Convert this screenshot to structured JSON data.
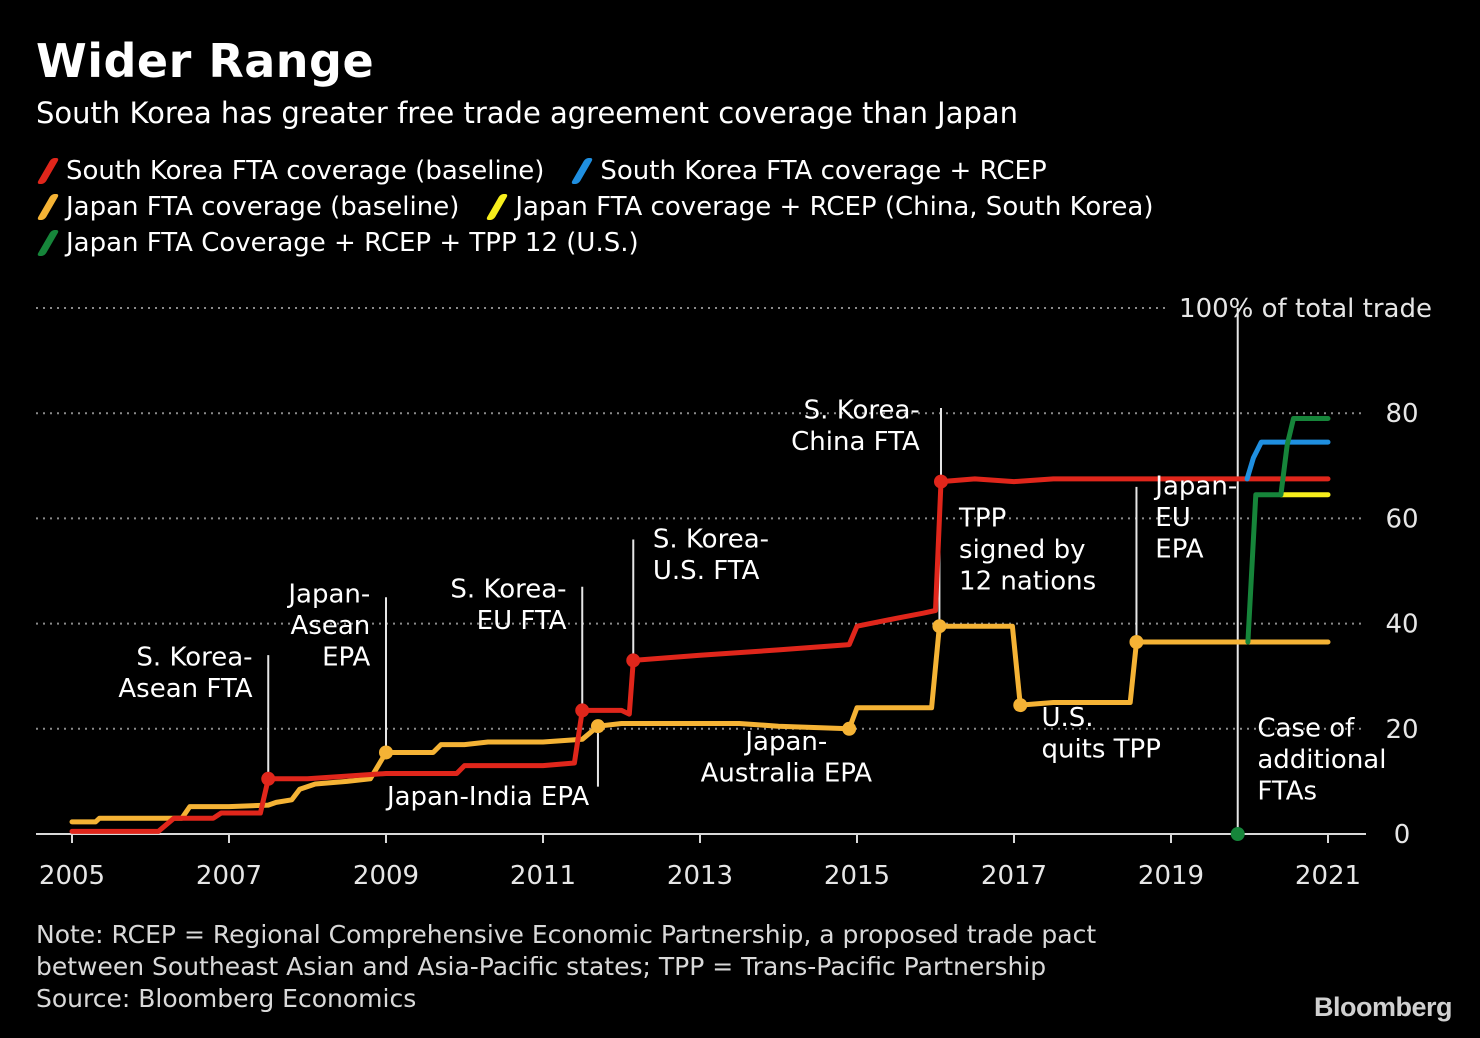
{
  "header": {
    "title": "Wider Range",
    "subtitle": "South Korea has greater free trade agreement coverage than Japan"
  },
  "legend": [
    {
      "label": "South Korea FTA coverage (baseline)",
      "color": "#e0261b"
    },
    {
      "label": "South Korea FTA coverage + RCEP",
      "color": "#1f8fe0"
    },
    {
      "label": "Japan FTA coverage (baseline)",
      "color": "#f5b335"
    },
    {
      "label": "Japan FTA coverage + RCEP (China, South Korea)",
      "color": "#f7ee1c"
    },
    {
      "label": "Japan FTA Coverage + RCEP + TPP 12 (U.S.)",
      "color": "#16853a"
    }
  ],
  "footer": {
    "note_line1": "Note: RCEP = Regional Comprehensive Economic Partnership, a proposed trade pact",
    "note_line2": "between Southeast Asian and Asia-Pacific states; TPP = Trans-Pacific Partnership",
    "source": "Source: Bloomberg Economics",
    "logo": "Bloomberg"
  },
  "chart_data": {
    "type": "line",
    "xlim": [
      2004.6,
      2021.5
    ],
    "ylim": [
      0,
      100
    ],
    "x_ticks": [
      2005,
      2007,
      2009,
      2011,
      2013,
      2015,
      2017,
      2019,
      2021
    ],
    "y_ticks": [
      0,
      20,
      40,
      60,
      80
    ],
    "top_gridline_label": "100% of total trade",
    "grid": true,
    "series": [
      {
        "name": "South Korea FTA coverage (baseline)",
        "color": "#e0261b",
        "points": [
          [
            2005.0,
            0.5
          ],
          [
            2006.1,
            0.5
          ],
          [
            2006.3,
            3.0
          ],
          [
            2006.8,
            3.0
          ],
          [
            2006.9,
            4.0
          ],
          [
            2007.4,
            4.0
          ],
          [
            2007.5,
            10.5
          ],
          [
            2008.0,
            10.5
          ],
          [
            2008.5,
            11.0
          ],
          [
            2009.0,
            11.5
          ],
          [
            2009.9,
            11.5
          ],
          [
            2010.0,
            13.0
          ],
          [
            2011.0,
            13.0
          ],
          [
            2011.4,
            13.5
          ],
          [
            2011.5,
            23.5
          ],
          [
            2012.0,
            23.5
          ],
          [
            2012.1,
            22.8
          ],
          [
            2012.15,
            33.0
          ],
          [
            2013.0,
            34.0
          ],
          [
            2014.0,
            35.0
          ],
          [
            2014.9,
            36.0
          ],
          [
            2015.0,
            39.5
          ],
          [
            2015.5,
            41.0
          ],
          [
            2015.85,
            42.0
          ],
          [
            2016.0,
            42.5
          ],
          [
            2016.07,
            67.0
          ],
          [
            2016.5,
            67.5
          ],
          [
            2017.0,
            67.0
          ],
          [
            2017.5,
            67.5
          ],
          [
            2018.5,
            67.5
          ],
          [
            2019.0,
            67.5
          ],
          [
            2020.0,
            67.5
          ],
          [
            2021.0,
            67.5
          ]
        ]
      },
      {
        "name": "South Korea FTA coverage + RCEP",
        "color": "#1f8fe0",
        "points": [
          [
            2019.97,
            67.5
          ],
          [
            2020.05,
            71.5
          ],
          [
            2020.15,
            74.5
          ],
          [
            2021.0,
            74.5
          ]
        ]
      },
      {
        "name": "Japan FTA coverage (baseline)",
        "color": "#f5b335",
        "points": [
          [
            2005.0,
            2.3
          ],
          [
            2005.3,
            2.3
          ],
          [
            2005.35,
            3.0
          ],
          [
            2006.0,
            3.0
          ],
          [
            2006.4,
            3.0
          ],
          [
            2006.5,
            5.2
          ],
          [
            2007.0,
            5.2
          ],
          [
            2007.5,
            5.5
          ],
          [
            2007.6,
            6.0
          ],
          [
            2007.8,
            6.5
          ],
          [
            2007.9,
            8.5
          ],
          [
            2008.1,
            9.5
          ],
          [
            2008.5,
            10.0
          ],
          [
            2008.8,
            10.5
          ],
          [
            2009.0,
            15.5
          ],
          [
            2009.6,
            15.5
          ],
          [
            2009.7,
            17.0
          ],
          [
            2010.0,
            17.0
          ],
          [
            2010.3,
            17.5
          ],
          [
            2011.0,
            17.5
          ],
          [
            2011.5,
            18.0
          ],
          [
            2011.7,
            20.5
          ],
          [
            2012.0,
            21.0
          ],
          [
            2013.0,
            21.0
          ],
          [
            2013.5,
            21.0
          ],
          [
            2014.0,
            20.5
          ],
          [
            2014.9,
            20.0
          ],
          [
            2015.0,
            24.0
          ],
          [
            2015.5,
            24.0
          ],
          [
            2015.95,
            24.0
          ],
          [
            2016.05,
            39.5
          ],
          [
            2016.5,
            39.5
          ],
          [
            2016.98,
            39.5
          ],
          [
            2017.08,
            24.5
          ],
          [
            2017.5,
            25.0
          ],
          [
            2018.0,
            25.0
          ],
          [
            2018.48,
            25.0
          ],
          [
            2018.56,
            36.5
          ],
          [
            2019.0,
            36.5
          ],
          [
            2020.0,
            36.5
          ],
          [
            2021.0,
            36.5
          ]
        ]
      },
      {
        "name": "Japan FTA coverage + RCEP (China, South Korea)",
        "color": "#f7ee1c",
        "points": [
          [
            2020.4,
            64.5
          ],
          [
            2021.0,
            64.5
          ]
        ]
      },
      {
        "name": "Japan FTA Coverage + RCEP + TPP 12 (U.S.)",
        "color": "#16853a",
        "points": [
          [
            2019.98,
            36.5
          ],
          [
            2020.08,
            64.5
          ],
          [
            2020.4,
            64.5
          ],
          [
            2020.48,
            74.0
          ],
          [
            2020.56,
            79.0
          ],
          [
            2021.0,
            79.0
          ]
        ]
      }
    ],
    "markers": [
      {
        "x": 2007.5,
        "y": 10.5,
        "color": "#e0261b"
      },
      {
        "x": 2011.5,
        "y": 23.5,
        "color": "#e0261b"
      },
      {
        "x": 2012.15,
        "y": 33.0,
        "color": "#e0261b"
      },
      {
        "x": 2016.07,
        "y": 67.0,
        "color": "#e0261b"
      },
      {
        "x": 2009.0,
        "y": 15.5,
        "color": "#f5b335"
      },
      {
        "x": 2011.7,
        "y": 20.5,
        "color": "#f5b335"
      },
      {
        "x": 2014.9,
        "y": 20.0,
        "color": "#f5b335"
      },
      {
        "x": 2016.05,
        "y": 39.5,
        "color": "#f5b335"
      },
      {
        "x": 2017.08,
        "y": 24.5,
        "color": "#f5b335"
      },
      {
        "x": 2018.56,
        "y": 36.5,
        "color": "#f5b335"
      },
      {
        "x": 2019.85,
        "y": 0,
        "color": "#16853a"
      }
    ],
    "annotations": [
      {
        "lines": [
          "S. Korea-",
          "Asean FTA"
        ],
        "x": 2007.5,
        "y": 10.5,
        "line_to": 34,
        "anchor": "end",
        "text_x": 2007.3,
        "text_y": 32
      },
      {
        "lines": [
          "Japan-",
          "Asean",
          "EPA"
        ],
        "x": 2009.0,
        "y": 15.5,
        "line_to": 45,
        "anchor": "end",
        "text_x": 2008.8,
        "text_y": 44
      },
      {
        "lines": [
          "S. Korea-",
          "EU FTA"
        ],
        "x": 2011.5,
        "y": 23.5,
        "line_to": 47,
        "anchor": "end",
        "text_x": 2011.3,
        "text_y": 45
      },
      {
        "lines": [
          "S. Korea-",
          "U.S. FTA"
        ],
        "x": 2012.15,
        "y": 33.0,
        "line_to": 56,
        "anchor": "start",
        "text_x": 2012.4,
        "text_y": 54.5
      },
      {
        "lines": [
          "S. Korea-",
          "China FTA"
        ],
        "x": 2016.07,
        "y": 67.0,
        "line_to": 81,
        "anchor": "end",
        "text_x": 2015.8,
        "text_y": 79
      },
      {
        "lines": [
          "TPP",
          "signed by",
          "12 nations"
        ],
        "x": 2016.05,
        "y": 39.5,
        "line_to": 60,
        "anchor": "start",
        "text_x": 2016.3,
        "text_y": 58.5
      },
      {
        "lines": [
          "Japan-",
          "EU",
          "EPA"
        ],
        "x": 2018.56,
        "y": 36.5,
        "line_to": 66,
        "anchor": "start",
        "text_x": 2018.8,
        "text_y": 64.5
      },
      {
        "lines": [
          "Japan-India EPA"
        ],
        "x": 2011.7,
        "y": 20.5,
        "line_to": 9,
        "anchor": "middle",
        "text_x": 2010.3,
        "text_y": 5.5
      },
      {
        "lines": [
          "Japan-",
          "Australia EPA"
        ],
        "x": 2014.9,
        "y": 20.0,
        "line_to": null,
        "anchor": "middle",
        "text_x": 2014.1,
        "text_y": 16
      },
      {
        "lines": [
          "U.S.",
          "quits TPP"
        ],
        "x": 2017.08,
        "y": 24.5,
        "line_to": null,
        "anchor": "start",
        "text_x": 2017.35,
        "text_y": 20.5
      },
      {
        "lines": [
          "Case of",
          "additional",
          "FTAs"
        ],
        "x": 2019.85,
        "y": 0,
        "line_to": 100,
        "anchor": "start",
        "text_x": 2020.1,
        "text_y": 18.5
      }
    ]
  }
}
